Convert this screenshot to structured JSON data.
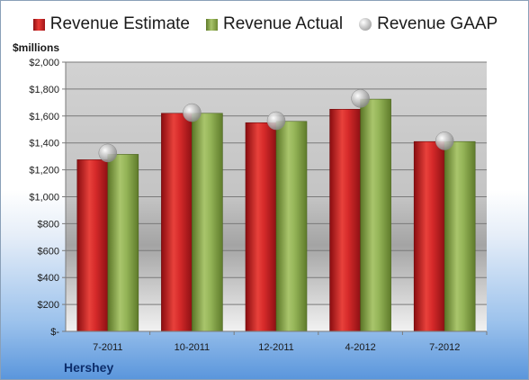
{
  "legend": {
    "estimate": "Revenue Estimate",
    "actual": "Revenue Actual",
    "gaap": "Revenue GAAP"
  },
  "y_unit": "$millions",
  "company": "Hershey",
  "colors": {
    "estimate": "#c8222a",
    "actual": "#8fb153",
    "gaap": "#b8b8b8"
  },
  "chart_data": {
    "type": "bar",
    "categories": [
      "7-2011",
      "10-2011",
      "12-2011",
      "4-2012",
      "7-2012"
    ],
    "series": [
      {
        "name": "Revenue Estimate",
        "values": [
          1275,
          1620,
          1550,
          1650,
          1410
        ]
      },
      {
        "name": "Revenue Actual",
        "values": [
          1315,
          1620,
          1560,
          1725,
          1410
        ]
      },
      {
        "name": "Revenue GAAP",
        "values": [
          1325,
          1625,
          1565,
          1730,
          1415
        ]
      }
    ],
    "ylim": [
      0,
      2000
    ],
    "yticks": [
      0,
      200,
      400,
      600,
      800,
      1000,
      1200,
      1400,
      1600,
      1800,
      2000
    ],
    "ytick_labels": [
      "$-",
      "$200",
      "$400",
      "$600",
      "$800",
      "$1,000",
      "$1,200",
      "$1,400",
      "$1,600",
      "$1,800",
      "$2,000"
    ],
    "ylabel": "$millions",
    "grid": true,
    "legend_position": "top"
  }
}
